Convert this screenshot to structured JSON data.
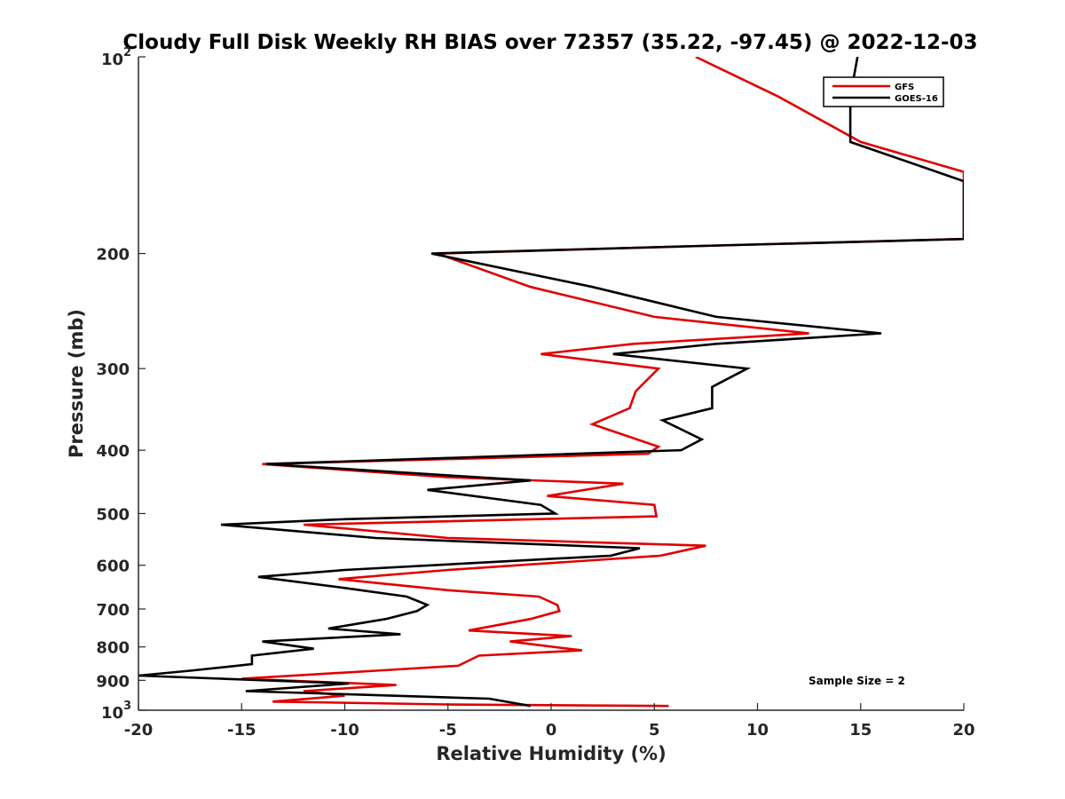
{
  "chart_data": {
    "type": "line",
    "title": "Cloudy Full Disk Weekly RH BIAS over 72357 (35.22, -97.45) @ 2022-12-03",
    "xlabel": "Relative Humidity (%)",
    "ylabel": "Pressure (mb)",
    "xlim": [
      -20,
      20
    ],
    "ylim": [
      100,
      1000
    ],
    "y_scale": "log",
    "y_reversed": true,
    "grid": false,
    "legend_position": "top-right",
    "x_ticks": [
      "-20",
      "-15",
      "-10",
      "-5",
      "0",
      "5",
      "10",
      "15",
      "20"
    ],
    "y_ticks": [
      {
        "value": 100,
        "base": "10",
        "exp": "2",
        "label": ""
      },
      {
        "value": 200,
        "base": "",
        "exp": "",
        "label": "200"
      },
      {
        "value": 300,
        "base": "",
        "exp": "",
        "label": "300"
      },
      {
        "value": 400,
        "base": "",
        "exp": "",
        "label": "400"
      },
      {
        "value": 500,
        "base": "",
        "exp": "",
        "label": "500"
      },
      {
        "value": 600,
        "base": "",
        "exp": "",
        "label": "600"
      },
      {
        "value": 700,
        "base": "",
        "exp": "",
        "label": "700"
      },
      {
        "value": 800,
        "base": "",
        "exp": "",
        "label": "800"
      },
      {
        "value": 900,
        "base": "",
        "exp": "",
        "label": "900"
      },
      {
        "value": 1000,
        "base": "10",
        "exp": "3",
        "label": ""
      }
    ],
    "annotation": "Sample Size = 2",
    "series": [
      {
        "name": "GFS",
        "color": "#e00000",
        "points": [
          {
            "x": 7.0,
            "y": 100
          },
          {
            "x": 11.0,
            "y": 115
          },
          {
            "x": 15.0,
            "y": 135
          },
          {
            "x": 20.0,
            "y": 150
          },
          {
            "x": 20.0,
            "y": 190
          },
          {
            "x": 6.5,
            "y": 195
          },
          {
            "x": -5.5,
            "y": 200
          },
          {
            "x": -1.0,
            "y": 225
          },
          {
            "x": 5.0,
            "y": 250
          },
          {
            "x": 12.5,
            "y": 265
          },
          {
            "x": 4.0,
            "y": 275
          },
          {
            "x": -0.5,
            "y": 285
          },
          {
            "x": 5.2,
            "y": 300
          },
          {
            "x": 4.1,
            "y": 325
          },
          {
            "x": 3.8,
            "y": 345
          },
          {
            "x": 2.0,
            "y": 365
          },
          {
            "x": 5.2,
            "y": 395
          },
          {
            "x": 4.7,
            "y": 405
          },
          {
            "x": -14.0,
            "y": 420
          },
          {
            "x": -5.0,
            "y": 440
          },
          {
            "x": 3.5,
            "y": 450
          },
          {
            "x": -0.2,
            "y": 470
          },
          {
            "x": 5.0,
            "y": 485
          },
          {
            "x": 5.1,
            "y": 505
          },
          {
            "x": -12.0,
            "y": 520
          },
          {
            "x": -5.0,
            "y": 545
          },
          {
            "x": 7.5,
            "y": 560
          },
          {
            "x": 5.3,
            "y": 580
          },
          {
            "x": -5.0,
            "y": 610
          },
          {
            "x": -10.3,
            "y": 630
          },
          {
            "x": -5.0,
            "y": 655
          },
          {
            "x": -0.6,
            "y": 670
          },
          {
            "x": 0.3,
            "y": 690
          },
          {
            "x": 0.4,
            "y": 705
          },
          {
            "x": -1.0,
            "y": 725
          },
          {
            "x": -4.0,
            "y": 755
          },
          {
            "x": 1.0,
            "y": 770
          },
          {
            "x": -2.0,
            "y": 785
          },
          {
            "x": 1.5,
            "y": 810
          },
          {
            "x": -3.5,
            "y": 825
          },
          {
            "x": -4.5,
            "y": 855
          },
          {
            "x": -8.5,
            "y": 870
          },
          {
            "x": -15.0,
            "y": 895
          },
          {
            "x": -7.5,
            "y": 915
          },
          {
            "x": -12.0,
            "y": 935
          },
          {
            "x": -10.0,
            "y": 950
          },
          {
            "x": -13.5,
            "y": 970
          },
          {
            "x": -5.0,
            "y": 980
          },
          {
            "x": 5.7,
            "y": 985
          }
        ]
      },
      {
        "name": "GOES-16",
        "color": "#000000",
        "points": [
          {
            "x": 15.0,
            "y": 94
          },
          {
            "x": 14.5,
            "y": 115
          },
          {
            "x": 14.5,
            "y": 135
          },
          {
            "x": 20.0,
            "y": 155
          },
          {
            "x": 20.0,
            "y": 190
          },
          {
            "x": 6.5,
            "y": 195
          },
          {
            "x": -5.8,
            "y": 200
          },
          {
            "x": 2.0,
            "y": 225
          },
          {
            "x": 8.0,
            "y": 250
          },
          {
            "x": 16.0,
            "y": 265
          },
          {
            "x": 8.0,
            "y": 275
          },
          {
            "x": 3.0,
            "y": 285
          },
          {
            "x": 9.5,
            "y": 300
          },
          {
            "x": 7.8,
            "y": 320
          },
          {
            "x": 7.8,
            "y": 345
          },
          {
            "x": 5.4,
            "y": 360
          },
          {
            "x": 7.3,
            "y": 385
          },
          {
            "x": 6.3,
            "y": 400
          },
          {
            "x": -13.8,
            "y": 420
          },
          {
            "x": -1.0,
            "y": 445
          },
          {
            "x": -6.0,
            "y": 460
          },
          {
            "x": -0.5,
            "y": 485
          },
          {
            "x": 0.2,
            "y": 500
          },
          {
            "x": -10.0,
            "y": 510
          },
          {
            "x": -16.0,
            "y": 520
          },
          {
            "x": -8.5,
            "y": 545
          },
          {
            "x": 4.3,
            "y": 565
          },
          {
            "x": 2.9,
            "y": 580
          },
          {
            "x": -10.0,
            "y": 610
          },
          {
            "x": -14.2,
            "y": 625
          },
          {
            "x": -10.0,
            "y": 650
          },
          {
            "x": -7.0,
            "y": 670
          },
          {
            "x": -6.0,
            "y": 690
          },
          {
            "x": -6.5,
            "y": 705
          },
          {
            "x": -8.0,
            "y": 725
          },
          {
            "x": -10.8,
            "y": 750
          },
          {
            "x": -7.3,
            "y": 765
          },
          {
            "x": -14.0,
            "y": 785
          },
          {
            "x": -11.5,
            "y": 805
          },
          {
            "x": -14.5,
            "y": 825
          },
          {
            "x": -14.5,
            "y": 850
          },
          {
            "x": -17.5,
            "y": 870
          },
          {
            "x": -20.0,
            "y": 885
          },
          {
            "x": -9.8,
            "y": 910
          },
          {
            "x": -14.8,
            "y": 935
          },
          {
            "x": -3.0,
            "y": 960
          },
          {
            "x": -1.0,
            "y": 985
          }
        ]
      }
    ]
  }
}
